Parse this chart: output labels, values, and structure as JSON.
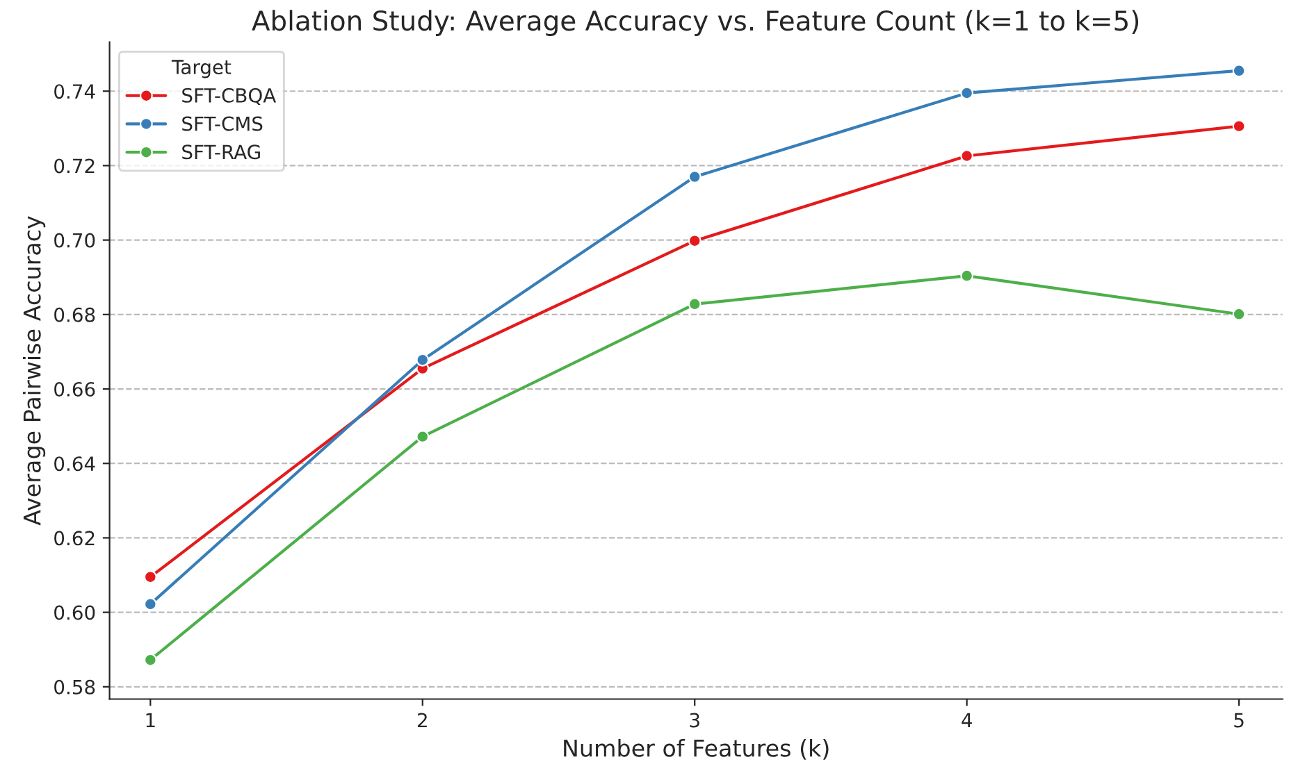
{
  "chart_data": {
    "type": "line",
    "title": "Ablation Study: Average Accuracy vs. Feature Count (k=1 to k=5)",
    "xlabel": "Number of Features (k)",
    "ylabel": "Average Pairwise Accuracy",
    "legend_title": "Target",
    "x": [
      1,
      2,
      3,
      4,
      5
    ],
    "series": [
      {
        "name": "SFT-CBQA",
        "color": "#e41a1c",
        "values": [
          0.6095,
          0.6655,
          0.6998,
          0.7226,
          0.7306
        ]
      },
      {
        "name": "SFT-CMS",
        "color": "#377eb8",
        "values": [
          0.6022,
          0.6678,
          0.717,
          0.7395,
          0.7455
        ]
      },
      {
        "name": "SFT-RAG",
        "color": "#4daf4a",
        "values": [
          0.5872,
          0.6472,
          0.6828,
          0.6904,
          0.6801
        ]
      }
    ],
    "xlim": [
      0.85,
      5.16
    ],
    "ylim": [
      0.5767,
      0.7532
    ],
    "xticks": [
      1,
      2,
      3,
      4,
      5
    ],
    "yticks": [
      {
        "value": 0.58,
        "label": "0.58"
      },
      {
        "value": 0.6,
        "label": "0.60"
      },
      {
        "value": 0.62,
        "label": "0.62"
      },
      {
        "value": 0.64,
        "label": "0.64"
      },
      {
        "value": 0.66,
        "label": "0.66"
      },
      {
        "value": 0.68,
        "label": "0.68"
      },
      {
        "value": 0.7,
        "label": "0.70"
      },
      {
        "value": 0.72,
        "label": "0.72"
      },
      {
        "value": 0.74,
        "label": "0.74"
      }
    ],
    "grid": "y",
    "legend": "top left",
    "marker": "circle",
    "line_style": "solid"
  }
}
